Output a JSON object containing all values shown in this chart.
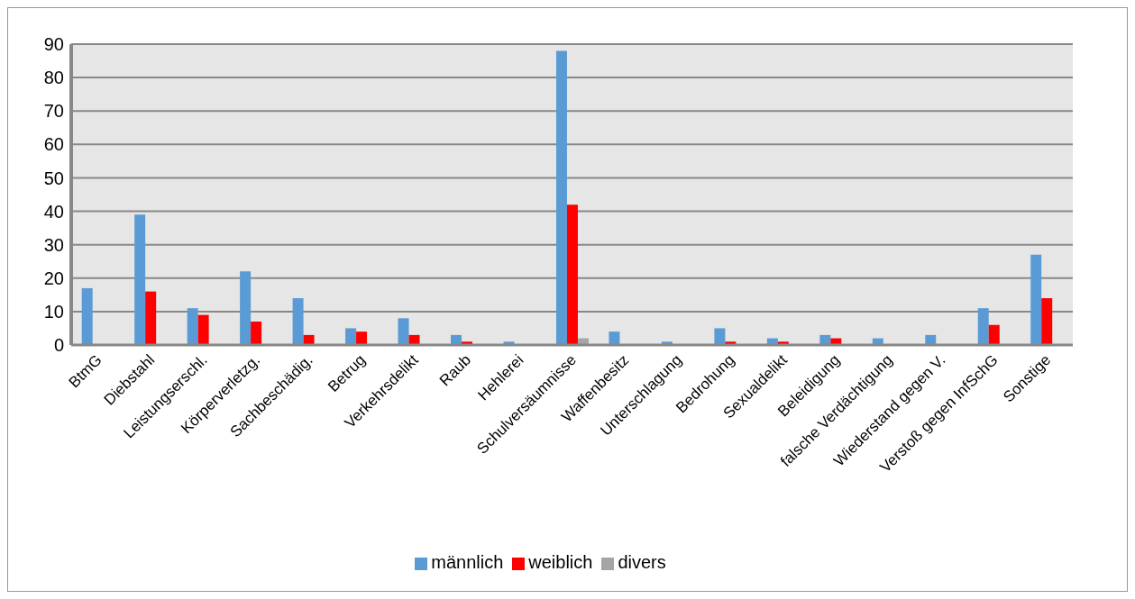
{
  "chart_data": {
    "type": "bar",
    "categories": [
      "BtmG",
      "Diebstahl",
      "Leistungserschl.",
      "Körperverletzg.",
      "Sachbeschädig.",
      "Betrug",
      "Verkehrsdelikt",
      "Raub",
      "Hehlerei",
      "Schulversäumnisse",
      "Waffenbesitz",
      "Unterschlagung",
      "Bedrohung",
      "Sexualdelikt",
      "Beleidigung",
      "falsche Verdächtigung",
      "Wiederstand gegen V.",
      "Verstoß gegen InfSchG",
      "Sonstige"
    ],
    "series": [
      {
        "name": "männlich",
        "color": "#5b9bd5",
        "values": [
          17,
          39,
          11,
          22,
          14,
          5,
          8,
          3,
          1,
          88,
          4,
          1,
          5,
          2,
          3,
          2,
          3,
          11,
          27
        ]
      },
      {
        "name": "weiblich",
        "color": "#ff0000",
        "values": [
          0,
          16,
          9,
          7,
          3,
          4,
          3,
          1,
          0,
          42,
          0,
          0,
          1,
          1,
          2,
          0,
          0,
          6,
          14
        ]
      },
      {
        "name": "divers",
        "color": "#a5a5a5",
        "values": [
          0,
          0,
          0,
          0,
          0,
          0,
          0,
          0,
          0,
          2,
          0,
          0,
          0,
          0,
          0,
          0,
          0,
          0,
          0
        ]
      }
    ],
    "ylim": [
      0,
      90
    ],
    "yticks": [
      0,
      10,
      20,
      30,
      40,
      50,
      60,
      70,
      80,
      90
    ],
    "grid": "y",
    "legend": "bottom"
  }
}
